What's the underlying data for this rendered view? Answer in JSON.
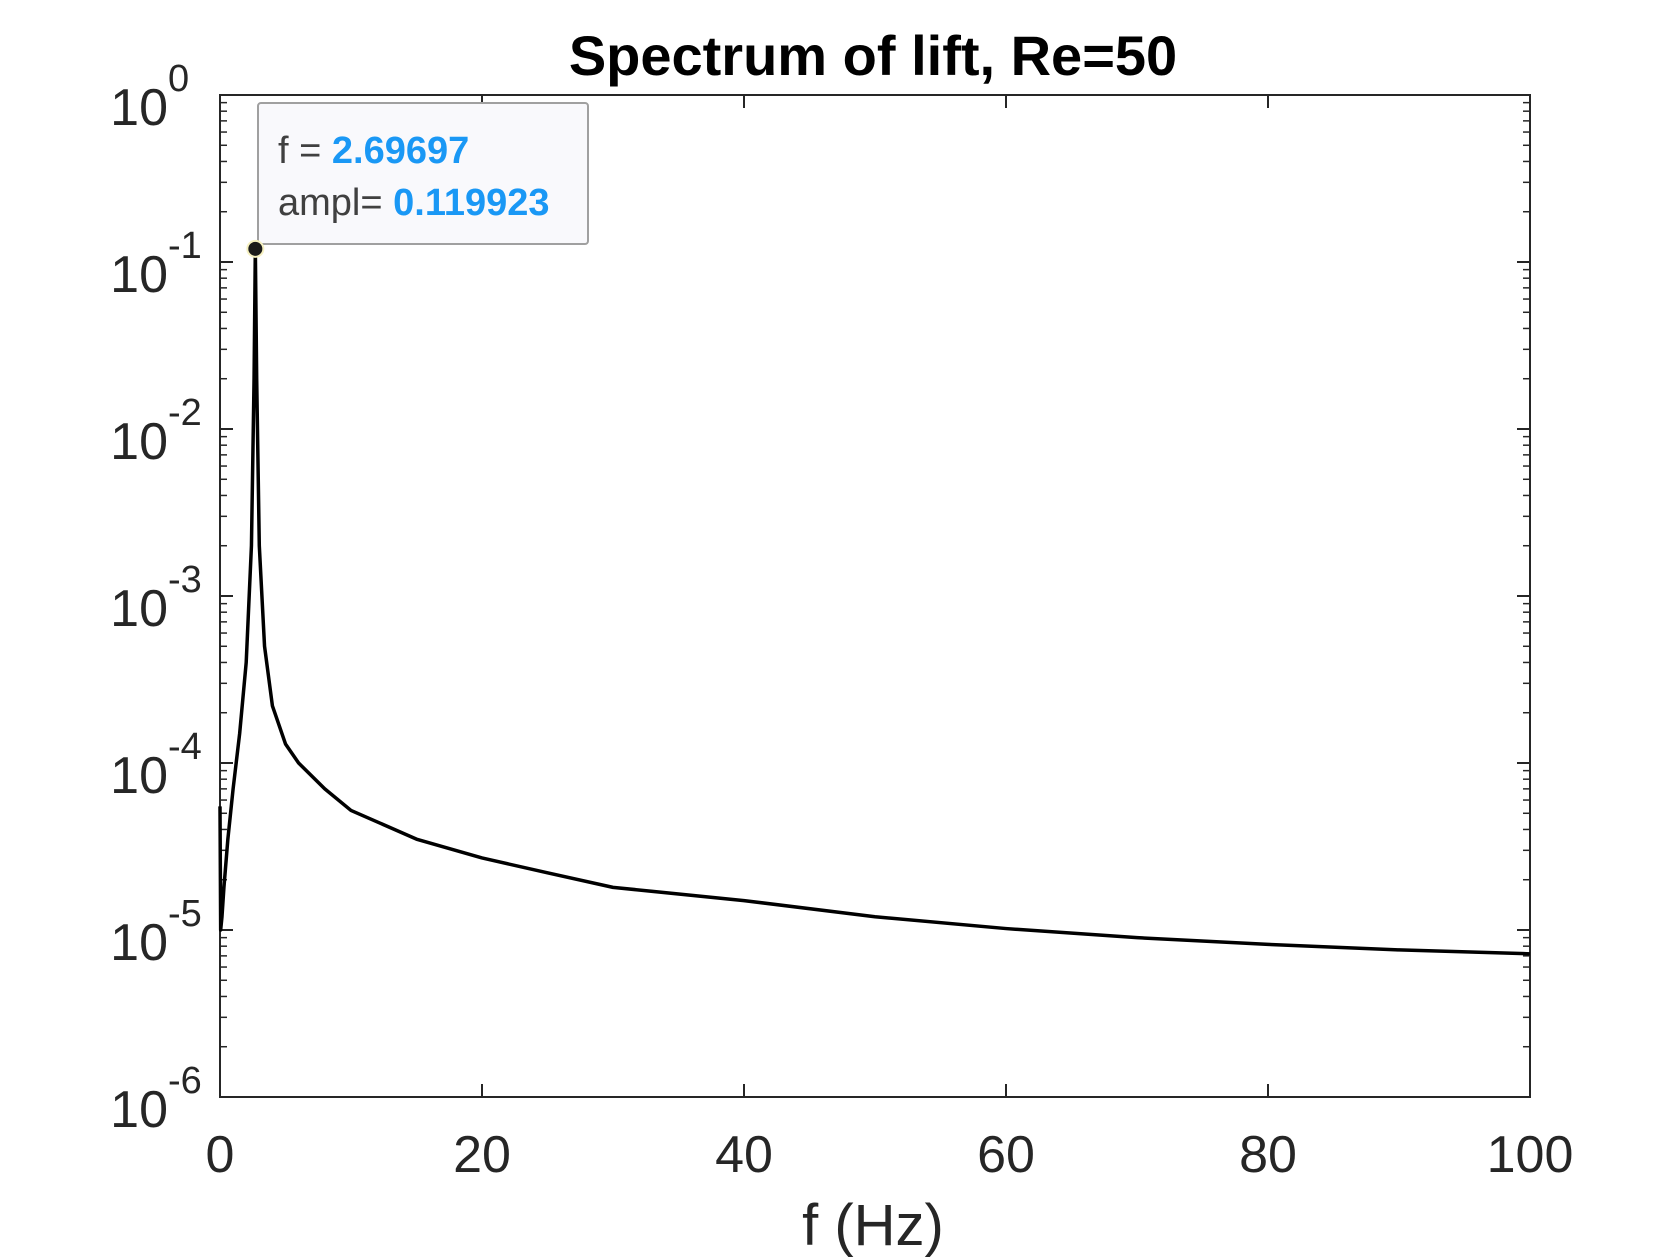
{
  "chart_data": {
    "type": "line",
    "title": "Spectrum of lift, Re=50",
    "xlabel": "f (Hz)",
    "ylabel": "",
    "xlim": [
      0,
      100
    ],
    "ylim": [
      1e-06,
      1
    ],
    "yscale": "log",
    "grid": false,
    "x_ticks": [
      "0",
      "20",
      "40",
      "60",
      "80",
      "100"
    ],
    "y_ticks": [
      {
        "base": "10",
        "exp": "0"
      },
      {
        "base": "10",
        "exp": "-1"
      },
      {
        "base": "10",
        "exp": "-2"
      },
      {
        "base": "10",
        "exp": "-3"
      },
      {
        "base": "10",
        "exp": "-4"
      },
      {
        "base": "10",
        "exp": "-5"
      },
      {
        "base": "10",
        "exp": "-6"
      }
    ],
    "line_color": "#000000",
    "series": [
      {
        "x": [
          0,
          0.05,
          0.15,
          0.3,
          0.6,
          1.0,
          1.5,
          2.0,
          2.4,
          2.6,
          2.69697,
          2.8,
          3.0,
          3.4,
          4.0,
          5.0,
          6.0,
          8.0,
          10,
          15,
          20,
          25,
          30,
          40,
          50,
          60,
          70,
          80,
          90,
          100
        ],
        "y": [
          5.5e-05,
          1e-05,
          1.2e-05,
          1.8e-05,
          3.5e-05,
          7e-05,
          0.00015,
          0.0004,
          0.002,
          0.02,
          0.119923,
          0.02,
          0.002,
          0.0005,
          0.00022,
          0.00013,
          0.0001,
          7e-05,
          5.2e-05,
          3.5e-05,
          2.7e-05,
          2.2e-05,
          1.8e-05,
          1.5e-05,
          1.2e-05,
          1.02e-05,
          9e-06,
          8.2e-06,
          7.6e-06,
          7.2e-06
        ]
      }
    ],
    "datatip": {
      "x_label": "f = ",
      "x_value": "2.69697",
      "y_label": "ampl= ",
      "y_value": "0.119923",
      "value_color": "#1a98f5"
    }
  }
}
